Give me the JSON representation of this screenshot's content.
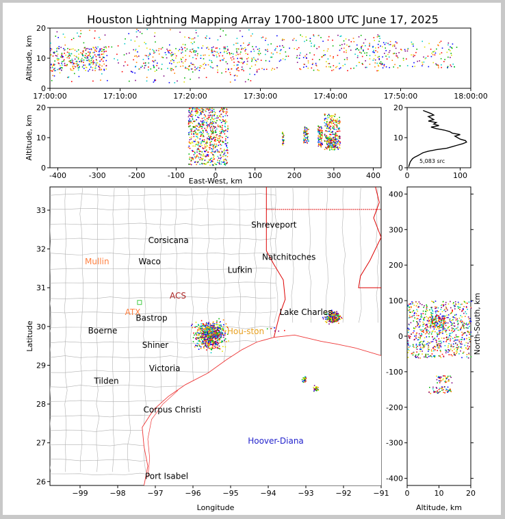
{
  "figure": {
    "title": "Houston Lightning Mapping Array 1700-1800 UTC June 17, 2025"
  },
  "colors": {
    "source_palette": [
      "#0000ff",
      "#00c8c8",
      "#00b400",
      "#e0e000",
      "#ff8000",
      "#ff0000",
      "#800080"
    ],
    "border_state": "#dd0000",
    "county_lines": "#b0b0b0",
    "coast": "#ee3333"
  },
  "chart_data": [
    {
      "id": "time-altitude",
      "type": "scatter",
      "ylabel": "Altitude, km",
      "xlabel": "",
      "xlim": [
        "17:00:00",
        "18:00:00"
      ],
      "ylim": [
        0,
        20
      ],
      "xticks": [
        "17:00:00",
        "17:10:00",
        "17:20:00",
        "17:30:00",
        "17:40:00",
        "17:50:00",
        "18:00:00"
      ],
      "yticks": [
        0,
        10,
        20
      ],
      "clusters": [
        {
          "t0": 0,
          "t1": 8,
          "z0": 6,
          "z1": 14,
          "n": 260
        },
        {
          "t0": 0,
          "t1": 30,
          "z0": 2,
          "z1": 20,
          "n": 260
        },
        {
          "t0": 12,
          "t1": 30,
          "z0": 6,
          "z1": 14,
          "n": 240
        },
        {
          "t0": 30,
          "t1": 48,
          "z0": 6,
          "z1": 18,
          "n": 240
        },
        {
          "t0": 46,
          "t1": 58,
          "z0": 7,
          "z1": 16,
          "n": 140
        }
      ]
    },
    {
      "id": "ew-altitude",
      "type": "scatter",
      "xlabel": "East-West, km",
      "ylabel": "Altitude, km",
      "xlim": [
        -420,
        420
      ],
      "ylim": [
        0,
        20
      ],
      "xticks": [
        -400,
        -300,
        -200,
        -100,
        0,
        100,
        200,
        300,
        400
      ],
      "yticks": [
        0,
        10,
        20
      ],
      "clusters": [
        {
          "x0": -70,
          "x1": 30,
          "z0": 1,
          "z1": 20,
          "n": 650
        },
        {
          "x0": 168,
          "x1": 172,
          "z0": 7,
          "z1": 12,
          "n": 25
        },
        {
          "x0": 222,
          "x1": 235,
          "z0": 8,
          "z1": 14,
          "n": 55
        },
        {
          "x0": 258,
          "x1": 270,
          "z0": 7,
          "z1": 14,
          "n": 75
        },
        {
          "x0": 275,
          "x1": 315,
          "z0": 6,
          "z1": 18,
          "n": 230
        },
        {
          "x0": 280,
          "x1": 305,
          "z0": 7,
          "z1": 10,
          "n": 80
        }
      ]
    },
    {
      "id": "altitude-histogram",
      "type": "line",
      "xlim": [
        0,
        120
      ],
      "ylim": [
        0,
        20
      ],
      "xticks": [
        0,
        100
      ],
      "yticks": [
        0,
        10,
        20
      ],
      "annotation": "5,083 src",
      "x": [
        3,
        4,
        6,
        10,
        14,
        20,
        25,
        30,
        40,
        55,
        75,
        85,
        95,
        105,
        112,
        110,
        100,
        95,
        90,
        100,
        85,
        80,
        70,
        55,
        45,
        60,
        50,
        55,
        40,
        50,
        45,
        40,
        50,
        45,
        30
      ],
      "y": [
        0.3,
        1,
        2,
        3,
        3.5,
        4,
        4.5,
        5,
        5.5,
        6,
        6.5,
        7,
        7.5,
        8,
        8.5,
        9,
        9.5,
        10,
        10.5,
        11,
        11.5,
        12,
        12.5,
        13,
        13.5,
        14,
        14.5,
        15,
        15.5,
        16,
        16.5,
        17,
        17.5,
        18,
        19
      ]
    },
    {
      "id": "plan-view",
      "type": "scatter",
      "xlabel": "Longitude",
      "ylabel": "Latitude",
      "xlim": [
        -99.8,
        -91
      ],
      "ylim": [
        25.9,
        33.6
      ],
      "xticks": [
        -99,
        -98,
        -97,
        -96,
        -95,
        -94,
        -93,
        -92,
        -91
      ],
      "yticks": [
        26,
        27,
        28,
        29,
        30,
        31,
        32,
        33
      ],
      "labels": [
        {
          "text": "Shreveport",
          "lon": -93.85,
          "lat": 32.55,
          "color": "#000000"
        },
        {
          "text": "Corsicana",
          "lon": -96.65,
          "lat": 32.15,
          "color": "#000000"
        },
        {
          "text": "Natchitoches",
          "lon": -93.45,
          "lat": 31.72,
          "color": "#000000"
        },
        {
          "text": "Mullin",
          "lon": -98.55,
          "lat": 31.6,
          "color": "#ff8040"
        },
        {
          "text": "Waco",
          "lon": -97.15,
          "lat": 31.6,
          "color": "#000000"
        },
        {
          "text": "Lufkin",
          "lon": -94.75,
          "lat": 31.38,
          "color": "#000000"
        },
        {
          "text": "ACS",
          "lon": -96.4,
          "lat": 30.72,
          "color": "#aa2222"
        },
        {
          "text": "ATX",
          "lon": -97.6,
          "lat": 30.3,
          "color": "#ff8040"
        },
        {
          "text": "Bastrop",
          "lon": -97.1,
          "lat": 30.15,
          "color": "#000000"
        },
        {
          "text": "Lake Charles",
          "lon": -93.0,
          "lat": 30.3,
          "color": "#000000"
        },
        {
          "text": "Boerne",
          "lon": -98.4,
          "lat": 29.82,
          "color": "#000000"
        },
        {
          "text": "Hou-ston",
          "lon": -94.6,
          "lat": 29.8,
          "color": "#e8a020"
        },
        {
          "text": "Shiner",
          "lon": -97.0,
          "lat": 29.45,
          "color": "#000000"
        },
        {
          "text": "Victoria",
          "lon": -96.75,
          "lat": 28.85,
          "color": "#000000"
        },
        {
          "text": "Tilden",
          "lon": -98.3,
          "lat": 28.52,
          "color": "#000000"
        },
        {
          "text": "Corpus Christi",
          "lon": -96.55,
          "lat": 27.78,
          "color": "#000000"
        },
        {
          "text": "Hoover-Diana",
          "lon": -93.8,
          "lat": 26.98,
          "color": "#2222cc"
        },
        {
          "text": "Port Isabel",
          "lon": -96.7,
          "lat": 26.07,
          "color": "#000000"
        }
      ],
      "clusters": [
        {
          "lon0": -96.1,
          "lon1": -95.0,
          "lat0": 29.3,
          "lat1": 30.3,
          "n": 700
        },
        {
          "lon0": -92.6,
          "lon1": -92.0,
          "lat0": 30.05,
          "lat1": 30.45,
          "n": 240
        },
        {
          "lon0": -93.15,
          "lon1": -92.95,
          "lat0": 28.55,
          "lat1": 28.75,
          "n": 30
        },
        {
          "lon0": -92.85,
          "lon1": -92.65,
          "lat0": 28.3,
          "lat1": 28.5,
          "n": 35
        },
        {
          "lon0": -94.6,
          "lon1": -93.4,
          "lat0": 29.85,
          "lat1": 30.05,
          "n": 8
        }
      ]
    },
    {
      "id": "altitude-northsouth",
      "type": "scatter",
      "xlabel": "Altitude, km",
      "ylabel": "North-South, km",
      "xlim": [
        0,
        20
      ],
      "ylim": [
        -420,
        420
      ],
      "xticks": [
        0,
        10,
        20
      ],
      "yticks": [
        -400,
        -300,
        -200,
        -100,
        0,
        100,
        200,
        300,
        400
      ],
      "clusters": [
        {
          "z0": 0,
          "z1": 20,
          "y0": -60,
          "y1": 100,
          "n": 700
        },
        {
          "z0": 7,
          "z1": 12,
          "y0": 25,
          "y1": 60,
          "n": 120
        },
        {
          "z0": 9,
          "z1": 14,
          "y0": -130,
          "y1": -110,
          "n": 40
        },
        {
          "z0": 6,
          "z1": 14,
          "y0": -160,
          "y1": -140,
          "n": 50
        }
      ]
    }
  ]
}
